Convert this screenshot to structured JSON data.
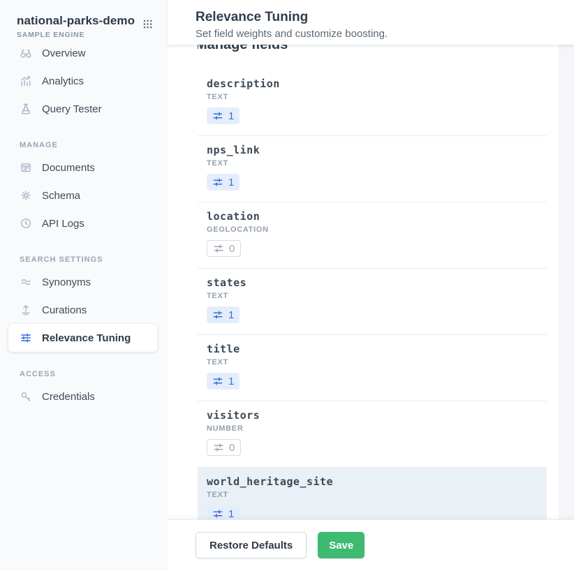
{
  "sidebar": {
    "engine_name": "national-parks-demo",
    "engine_type": "SAMPLE ENGINE",
    "apps_icon": "apps-grid-icon",
    "sections": [
      {
        "label": "",
        "items": [
          {
            "label": "Overview",
            "icon": "binoculars-icon",
            "active": false
          },
          {
            "label": "Analytics",
            "icon": "analytics-icon",
            "active": false
          },
          {
            "label": "Query Tester",
            "icon": "beaker-icon",
            "active": false
          }
        ]
      },
      {
        "label": "MANAGE",
        "items": [
          {
            "label": "Documents",
            "icon": "documents-icon",
            "active": false
          },
          {
            "label": "Schema",
            "icon": "gear-icon",
            "active": false
          },
          {
            "label": "API Logs",
            "icon": "clock-icon",
            "active": false
          }
        ]
      },
      {
        "label": "SEARCH SETTINGS",
        "items": [
          {
            "label": "Synonyms",
            "icon": "synonyms-icon",
            "active": false
          },
          {
            "label": "Curations",
            "icon": "curations-icon",
            "active": false
          },
          {
            "label": "Relevance Tuning",
            "icon": "sliders-icon",
            "active": true
          }
        ]
      },
      {
        "label": "ACCESS",
        "items": [
          {
            "label": "Credentials",
            "icon": "key-icon",
            "active": false
          }
        ]
      }
    ]
  },
  "header": {
    "title": "Relevance Tuning",
    "subtitle": "Set field weights and customize boosting."
  },
  "content": {
    "section_heading": "Manage fields",
    "badge_icon": "weight-sliders-icon",
    "fields": [
      {
        "name": "description",
        "type": "TEXT",
        "weight": "1",
        "active": true,
        "highlighted": false
      },
      {
        "name": "nps_link",
        "type": "TEXT",
        "weight": "1",
        "active": true,
        "highlighted": false
      },
      {
        "name": "location",
        "type": "GEOLOCATION",
        "weight": "0",
        "active": false,
        "highlighted": false
      },
      {
        "name": "states",
        "type": "TEXT",
        "weight": "1",
        "active": true,
        "highlighted": false
      },
      {
        "name": "title",
        "type": "TEXT",
        "weight": "1",
        "active": true,
        "highlighted": false
      },
      {
        "name": "visitors",
        "type": "NUMBER",
        "weight": "0",
        "active": false,
        "highlighted": false
      },
      {
        "name": "world_heritage_site",
        "type": "TEXT",
        "weight": "1",
        "active": true,
        "highlighted": true
      }
    ]
  },
  "footer": {
    "restore_label": "Restore Defaults",
    "save_label": "Save"
  },
  "colors": {
    "accent_blue": "#2e6be0",
    "badge_blue": "#3b6fd8",
    "badge_blue_bg": "#e4eefb",
    "badge_gray": "#9aa6b2",
    "highlight_row_bg": "#e9f1f7",
    "save_green": "#3fba71",
    "sidebar_bg": "#f9fafc"
  }
}
